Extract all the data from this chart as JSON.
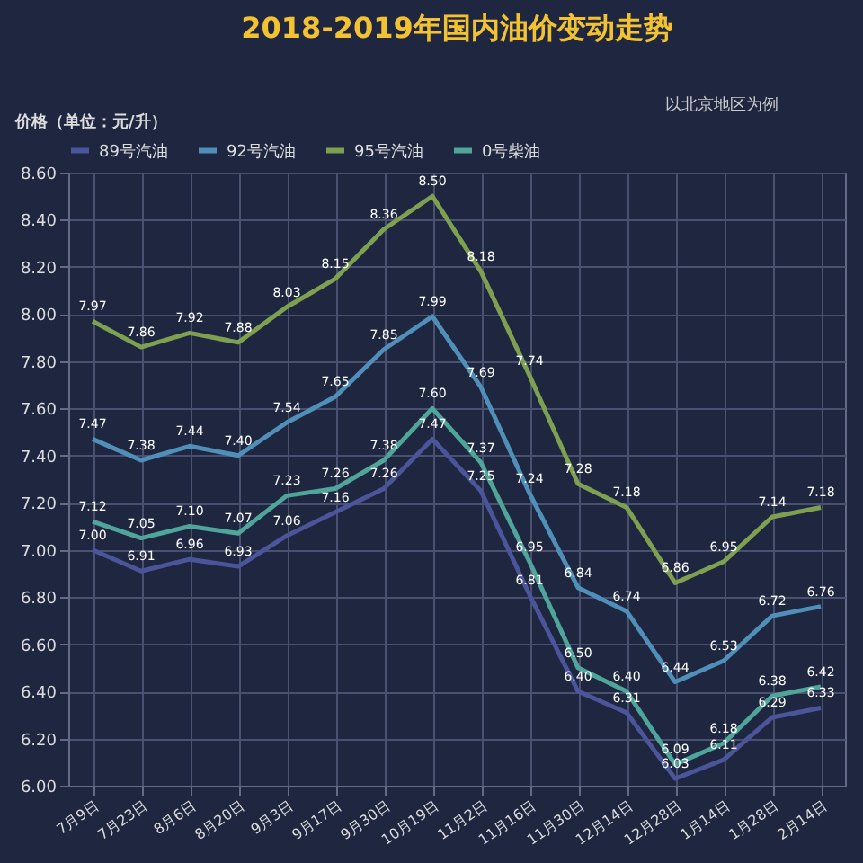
{
  "chart_data": {
    "type": "line",
    "title": "2018-2019年国内油价变动走势",
    "ylabel": "价格（单位：元/升）",
    "annotations": [
      "以北京地区为例"
    ],
    "categories": [
      "7月9日",
      "7月23日",
      "8月6日",
      "8月20日",
      "9月3日",
      "9月17日",
      "9月30日",
      "10月19日",
      "11月2日",
      "11月16日",
      "11月30日",
      "12月14日",
      "12月28日",
      "1月14日",
      "1月28日",
      "2月14日"
    ],
    "series": [
      {
        "name": "89号汽油",
        "color": "#4a559a",
        "values": [
          7.0,
          6.91,
          6.96,
          6.93,
          7.06,
          7.16,
          7.26,
          7.47,
          7.25,
          6.81,
          6.4,
          6.31,
          6.03,
          6.11,
          6.29,
          6.33
        ],
        "value_labels": [
          "7.00",
          "6.91",
          "6.96",
          "6.93",
          "7.06",
          "7.16",
          "7.26",
          "7.47",
          "7.25",
          "6.81",
          "6.40",
          "6.31",
          "6.03",
          "6.11",
          "6.29",
          "6.33"
        ]
      },
      {
        "name": "92号汽油",
        "color": "#4f8fb8",
        "values": [
          7.47,
          7.38,
          7.44,
          7.4,
          7.54,
          7.65,
          7.85,
          7.99,
          7.69,
          7.24,
          6.84,
          6.74,
          6.44,
          6.53,
          6.72,
          6.76
        ],
        "value_labels": [
          "7.47",
          "7.38",
          "7.44",
          "7.40",
          "7.54",
          "7.65",
          "7.85",
          "7.99",
          "7.69",
          "7.24",
          "6.84",
          "6.74",
          "6.44",
          "6.53",
          "6.72",
          "6.76"
        ]
      },
      {
        "name": "95号汽油",
        "color": "#7fa050",
        "values": [
          7.97,
          7.86,
          7.92,
          7.88,
          8.03,
          8.15,
          8.36,
          8.5,
          8.18,
          7.74,
          7.28,
          7.18,
          6.86,
          6.95,
          7.14,
          7.18
        ],
        "value_labels": [
          "7.97",
          "7.86",
          "7.92",
          "7.88",
          "8.03",
          "8.15",
          "8.36",
          "8.50",
          "8.18",
          "7.74",
          "7.28",
          "7.18",
          "6.86",
          "6.95",
          "7.14",
          "7.18"
        ]
      },
      {
        "name": "0号柴油",
        "color": "#4fa59a",
        "values": [
          7.12,
          7.05,
          7.1,
          7.07,
          7.23,
          7.26,
          7.38,
          7.6,
          7.37,
          6.95,
          6.5,
          6.4,
          6.09,
          6.18,
          6.38,
          6.42
        ],
        "value_labels": [
          "7.12",
          "7.05",
          "7.10",
          "7.07",
          "7.23",
          "7.26",
          "7.38",
          "7.60",
          "7.37",
          "6.95",
          "6.50",
          "6.40",
          "6.09",
          "6.18",
          "6.38",
          "6.42"
        ]
      }
    ],
    "ylim": [
      6.0,
      8.6
    ],
    "yticks": [
      {
        "value": 6.0,
        "label": "6.00"
      },
      {
        "value": 6.2,
        "label": "6.20"
      },
      {
        "value": 6.4,
        "label": "6.40"
      },
      {
        "value": 6.6,
        "label": "6.60"
      },
      {
        "value": 6.8,
        "label": "6.80"
      },
      {
        "value": 7.0,
        "label": "7.00"
      },
      {
        "value": 7.2,
        "label": "7.20"
      },
      {
        "value": 7.4,
        "label": "7.40"
      },
      {
        "value": 7.6,
        "label": "7.60"
      },
      {
        "value": 7.8,
        "label": "7.80"
      },
      {
        "value": 8.0,
        "label": "8.00"
      },
      {
        "value": 8.2,
        "label": "8.20"
      },
      {
        "value": 8.4,
        "label": "8.40"
      },
      {
        "value": 8.6,
        "label": "8.60"
      }
    ],
    "grid": true,
    "legend": "top",
    "marker": "none",
    "line_style": "solid"
  }
}
